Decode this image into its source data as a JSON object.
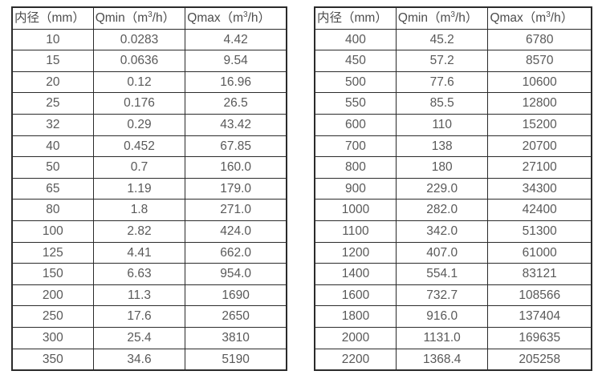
{
  "page": {
    "background_color": "#ffffff",
    "border_color": "#2b2b2b",
    "text_color": "#595959"
  },
  "tables": [
    {
      "name": "flow-table-small-diameters",
      "headers": [
        "内径（mm）",
        "Qmin（m³/h）",
        "Qmax（m³/h）"
      ],
      "column_keys": [
        "diameter",
        "qmin",
        "qmax"
      ],
      "rows": [
        [
          "10",
          "0.0283",
          "4.42"
        ],
        [
          "15",
          "0.0636",
          "9.54"
        ],
        [
          "20",
          "0.12",
          "16.96"
        ],
        [
          "25",
          "0.176",
          "26.5"
        ],
        [
          "32",
          "0.29",
          "43.42"
        ],
        [
          "40",
          "0.452",
          "67.85"
        ],
        [
          "50",
          "0.7",
          "160.0"
        ],
        [
          "65",
          "1.19",
          "179.0"
        ],
        [
          "80",
          "1.8",
          "271.0"
        ],
        [
          "100",
          "2.82",
          "424.0"
        ],
        [
          "125",
          "4.41",
          "662.0"
        ],
        [
          "150",
          "6.63",
          "954.0"
        ],
        [
          "200",
          "11.3",
          "1690"
        ],
        [
          "250",
          "17.6",
          "2650"
        ],
        [
          "300",
          "25.4",
          "3810"
        ],
        [
          "350",
          "34.6",
          "5190"
        ]
      ]
    },
    {
      "name": "flow-table-large-diameters",
      "headers": [
        "内径（mm）",
        "Qmin（m³/h）",
        "Qmax（m³/h）"
      ],
      "column_keys": [
        "diameter",
        "qmin",
        "qmax"
      ],
      "rows": [
        [
          "400",
          "45.2",
          "6780"
        ],
        [
          "450",
          "57.2",
          "8570"
        ],
        [
          "500",
          "77.6",
          "10600"
        ],
        [
          "550",
          "85.5",
          "12800"
        ],
        [
          "600",
          "110",
          "15200"
        ],
        [
          "700",
          "138",
          "20700"
        ],
        [
          "800",
          "180",
          "27100"
        ],
        [
          "900",
          "229.0",
          "34300"
        ],
        [
          "1000",
          "282.0",
          "42400"
        ],
        [
          "1100",
          "342.0",
          "51300"
        ],
        [
          "1200",
          "407.0",
          "61000"
        ],
        [
          "1400",
          "554.1",
          "83121"
        ],
        [
          "1600",
          "732.7",
          "108566"
        ],
        [
          "1800",
          "916.0",
          "137404"
        ],
        [
          "2000",
          "1131.0",
          "169635"
        ],
        [
          "2200",
          "1368.4",
          "205258"
        ]
      ]
    }
  ]
}
